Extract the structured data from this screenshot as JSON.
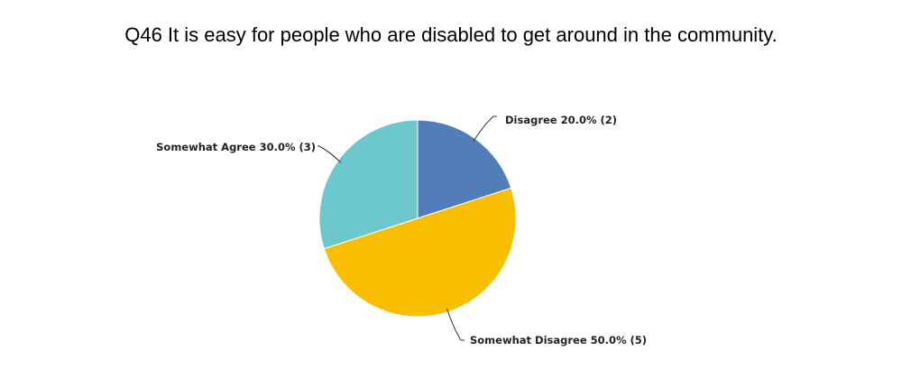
{
  "chart_data": {
    "type": "pie",
    "title": "Q46 It is easy for people who are disabled to get around in the community.",
    "slices": [
      {
        "name": "Disagree",
        "percent": 20.0,
        "count": 2,
        "label": "Disagree 20.0% (2)",
        "color": "#517db8"
      },
      {
        "name": "Somewhat Disagree",
        "percent": 50.0,
        "count": 5,
        "label": "Somewhat Disagree 50.0% (5)",
        "color": "#f9be00"
      },
      {
        "name": "Somewhat Agree",
        "percent": 30.0,
        "count": 3,
        "label": "Somewhat Agree 30.0% (3)",
        "color": "#6cc8cd"
      }
    ],
    "legend": "none"
  }
}
